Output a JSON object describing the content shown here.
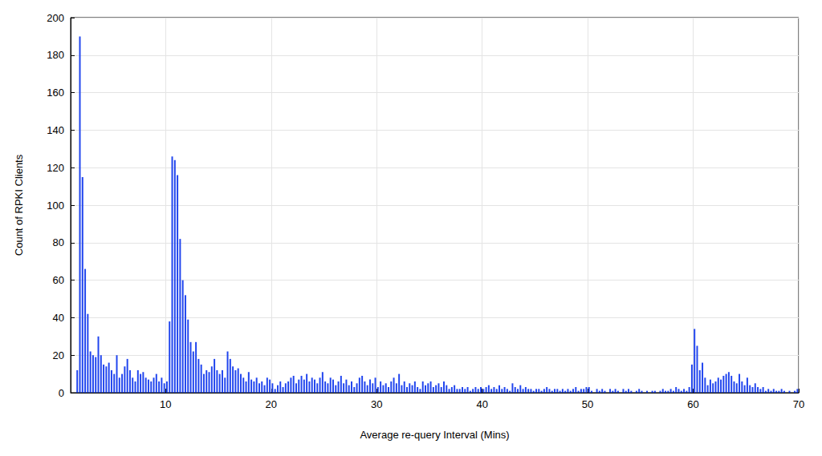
{
  "chart_data": {
    "type": "histogram",
    "x_label": "Average re-query Interval (Mins)",
    "y_label": "Count of RPKI Clients",
    "color": "#1f44ee",
    "grid": true,
    "xlim": [
      1,
      70
    ],
    "xticks": [
      10,
      20,
      30,
      40,
      50,
      60,
      70
    ],
    "ylim": [
      0,
      200
    ],
    "yticks": [
      0,
      20,
      40,
      60,
      80,
      100,
      120,
      140,
      160,
      180,
      200
    ],
    "bins": [
      1,
      1.25,
      1.5,
      1.75,
      2,
      2.25,
      2.5,
      2.75,
      3,
      3.25,
      3.5,
      3.75,
      4,
      4.25,
      4.5,
      4.75,
      5,
      5.25,
      5.5,
      5.75,
      6,
      6.25,
      6.5,
      6.75,
      7,
      7.25,
      7.5,
      7.75,
      8,
      8.25,
      8.5,
      8.75,
      9,
      9.25,
      9.5,
      9.75,
      10,
      10.25,
      10.5,
      10.75,
      11,
      11.25,
      11.5,
      11.75,
      12,
      12.25,
      12.5,
      12.75,
      13,
      13.25,
      13.5,
      13.75,
      14,
      14.25,
      14.5,
      14.75,
      15,
      15.25,
      15.5,
      15.75,
      16,
      16.25,
      16.5,
      16.75,
      17,
      17.25,
      17.5,
      17.75,
      18,
      18.25,
      18.5,
      18.75,
      19,
      19.25,
      19.5,
      19.75,
      20,
      20.25,
      20.5,
      20.75,
      21,
      21.25,
      21.5,
      21.75,
      22,
      22.25,
      22.5,
      22.75,
      23,
      23.25,
      23.5,
      23.75,
      24,
      24.25,
      24.5,
      24.75,
      25,
      25.25,
      25.5,
      25.75,
      26,
      26.25,
      26.5,
      26.75,
      27,
      27.25,
      27.5,
      27.75,
      28,
      28.25,
      28.5,
      28.75,
      29,
      29.25,
      29.5,
      29.75,
      30,
      30.25,
      30.5,
      30.75,
      31,
      31.25,
      31.5,
      31.75,
      32,
      32.25,
      32.5,
      32.75,
      33,
      33.25,
      33.5,
      33.75,
      34,
      34.25,
      34.5,
      34.75,
      35,
      35.25,
      35.5,
      35.75,
      36,
      36.25,
      36.5,
      36.75,
      37,
      37.25,
      37.5,
      37.75,
      38,
      38.25,
      38.5,
      38.75,
      39,
      39.25,
      39.5,
      39.75,
      40,
      40.25,
      40.5,
      40.75,
      41,
      41.25,
      41.5,
      41.75,
      42,
      42.25,
      42.5,
      42.75,
      43,
      43.25,
      43.5,
      43.75,
      44,
      44.25,
      44.5,
      44.75,
      45,
      45.25,
      45.5,
      45.75,
      46,
      46.25,
      46.5,
      46.75,
      47,
      47.25,
      47.5,
      47.75,
      48,
      48.25,
      48.5,
      48.75,
      49,
      49.25,
      49.5,
      49.75,
      50,
      50.25,
      50.5,
      50.75,
      51,
      51.25,
      51.5,
      51.75,
      52,
      52.25,
      52.5,
      52.75,
      53,
      53.25,
      53.5,
      53.75,
      54,
      54.25,
      54.5,
      54.75,
      55,
      55.25,
      55.5,
      55.75,
      56,
      56.25,
      56.5,
      56.75,
      57,
      57.25,
      57.5,
      57.75,
      58,
      58.25,
      58.5,
      58.75,
      59,
      59.25,
      59.5,
      59.75,
      60,
      60.25,
      60.5,
      60.75,
      61,
      61.25,
      61.5,
      61.75,
      62,
      62.25,
      62.5,
      62.75,
      63,
      63.25,
      63.5,
      63.75,
      64,
      64.25,
      64.5,
      64.75,
      65,
      65.25,
      65.5,
      65.75,
      66,
      66.25,
      66.5,
      66.75,
      67,
      67.25,
      67.5,
      67.75,
      68,
      68.25,
      68.5,
      68.75,
      69,
      69.25,
      69.5,
      69.75,
      70
    ],
    "values": [
      0,
      0,
      12,
      190,
      115,
      66,
      42,
      22,
      20,
      19,
      30,
      20,
      15,
      14,
      16,
      12,
      10,
      20,
      8,
      10,
      14,
      18,
      12,
      8,
      6,
      12,
      10,
      11,
      8,
      7,
      6,
      8,
      10,
      6,
      8,
      5,
      6,
      38,
      126,
      124,
      116,
      82,
      60,
      52,
      39,
      27,
      22,
      27,
      18,
      15,
      10,
      12,
      11,
      14,
      18,
      12,
      10,
      12,
      8,
      22,
      18,
      14,
      12,
      13,
      10,
      8,
      6,
      11,
      7,
      6,
      8,
      5,
      6,
      4,
      8,
      7,
      5,
      2,
      4,
      6,
      3,
      5,
      6,
      8,
      9,
      5,
      7,
      9,
      7,
      10,
      6,
      8,
      7,
      5,
      8,
      11,
      6,
      5,
      8,
      7,
      4,
      6,
      9,
      5,
      7,
      4,
      6,
      3,
      5,
      8,
      9,
      6,
      4,
      7,
      5,
      8,
      3,
      6,
      4,
      5,
      3,
      6,
      8,
      5,
      10,
      4,
      6,
      3,
      5,
      4,
      6,
      3,
      2,
      6,
      4,
      5,
      6,
      3,
      4,
      5,
      3,
      6,
      4,
      2,
      3,
      4,
      2,
      2,
      3,
      2,
      3,
      1,
      2,
      3,
      2,
      3,
      2,
      3,
      4,
      2,
      3,
      2,
      4,
      2,
      3,
      2,
      1,
      5,
      3,
      2,
      4,
      2,
      3,
      2,
      2,
      1,
      2,
      2,
      1,
      2,
      3,
      2,
      1,
      2,
      2,
      1,
      2,
      1,
      2,
      1,
      2,
      3,
      1,
      2,
      2,
      3,
      3,
      1,
      0,
      2,
      1,
      2,
      1,
      0,
      2,
      1,
      2,
      1,
      0,
      2,
      1,
      2,
      1,
      0,
      1,
      2,
      1,
      0,
      1,
      0,
      1,
      1,
      0,
      1,
      2,
      1,
      1,
      2,
      1,
      3,
      2,
      1,
      2,
      1,
      3,
      15,
      34,
      25,
      12,
      16,
      8,
      4,
      7,
      5,
      6,
      8,
      7,
      9,
      10,
      11,
      9,
      6,
      5,
      10,
      6,
      4,
      8,
      4,
      3,
      5,
      3,
      2,
      3,
      1,
      2,
      1,
      2,
      1,
      1,
      2,
      1,
      0,
      1,
      0,
      1,
      2
    ]
  }
}
